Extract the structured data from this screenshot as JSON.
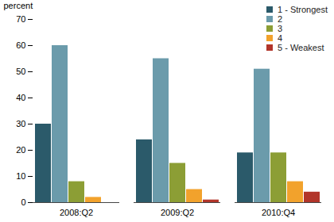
{
  "chart_data": {
    "type": "bar",
    "y_label": "percent",
    "categories": [
      "2008:Q2",
      "2009:Q2",
      "2010:Q4"
    ],
    "series": [
      {
        "name": "1 - Strongest",
        "color": "#2b5a6a",
        "values": [
          30,
          24,
          19
        ]
      },
      {
        "name": "2",
        "color": "#6b9bab",
        "values": [
          60,
          55,
          51
        ]
      },
      {
        "name": "3",
        "color": "#8c9e35",
        "values": [
          8,
          15,
          19
        ]
      },
      {
        "name": "4",
        "color": "#f2a22c",
        "values": [
          2,
          5,
          8
        ]
      },
      {
        "name": "5 - Weakest",
        "color": "#b2352a",
        "values": [
          0,
          1,
          4
        ]
      }
    ],
    "ylim": [
      0,
      70
    ],
    "yticks": [
      0,
      10,
      20,
      30,
      40,
      50,
      60,
      70
    ],
    "grid": false,
    "legend": "top-right"
  }
}
